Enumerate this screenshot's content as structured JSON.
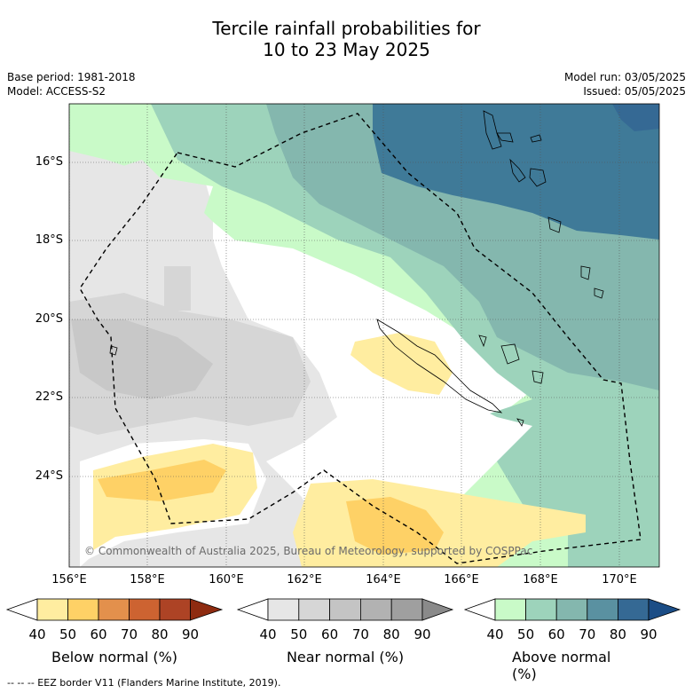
{
  "title_line1": "Tercile rainfall probabilities for",
  "title_line2": "10 to 23 May 2025",
  "base_period": "Base period: 1981-2018",
  "model": "Model: ACCESS-S2",
  "model_run": "Model run: 03/05/2025",
  "issued": "Issued: 05/05/2025",
  "copyright": "© Commonwealth of Australia 2025, Bureau of Meteorology, supported by COSPPac",
  "footer": "--  --  -- EEZ border V11 (Flanders Marine Institute, 2019).",
  "lat_labels": [
    "16°S",
    "18°S",
    "20°S",
    "22°S",
    "24°S"
  ],
  "lon_labels": [
    "156°E",
    "158°E",
    "160°E",
    "162°E",
    "164°E",
    "166°E",
    "168°E",
    "170°E"
  ],
  "colorbars": [
    {
      "label": "Below normal (%)",
      "ticks": [
        "40",
        "50",
        "60",
        "70",
        "80",
        "90"
      ],
      "colors": [
        "#ffffff",
        "#ffeda0",
        "#fed166",
        "#e3904c",
        "#cd6331",
        "#ad4325",
        "#8e2b10"
      ]
    },
    {
      "label": "Near normal (%)",
      "ticks": [
        "40",
        "50",
        "60",
        "70",
        "80",
        "90"
      ],
      "colors": [
        "#ffffff",
        "#e6e6e6",
        "#d6d6d6",
        "#c4c4c4",
        "#b2b2b2",
        "#9f9f9f",
        "#8a8a8a"
      ]
    },
    {
      "label": "Above normal (%)",
      "ticks": [
        "40",
        "50",
        "60",
        "70",
        "80",
        "90"
      ],
      "colors": [
        "#ffffff",
        "#c9fac8",
        "#9dd3bb",
        "#84b7ae",
        "#5a91a1",
        "#356994",
        "#1b4d86"
      ]
    }
  ]
}
